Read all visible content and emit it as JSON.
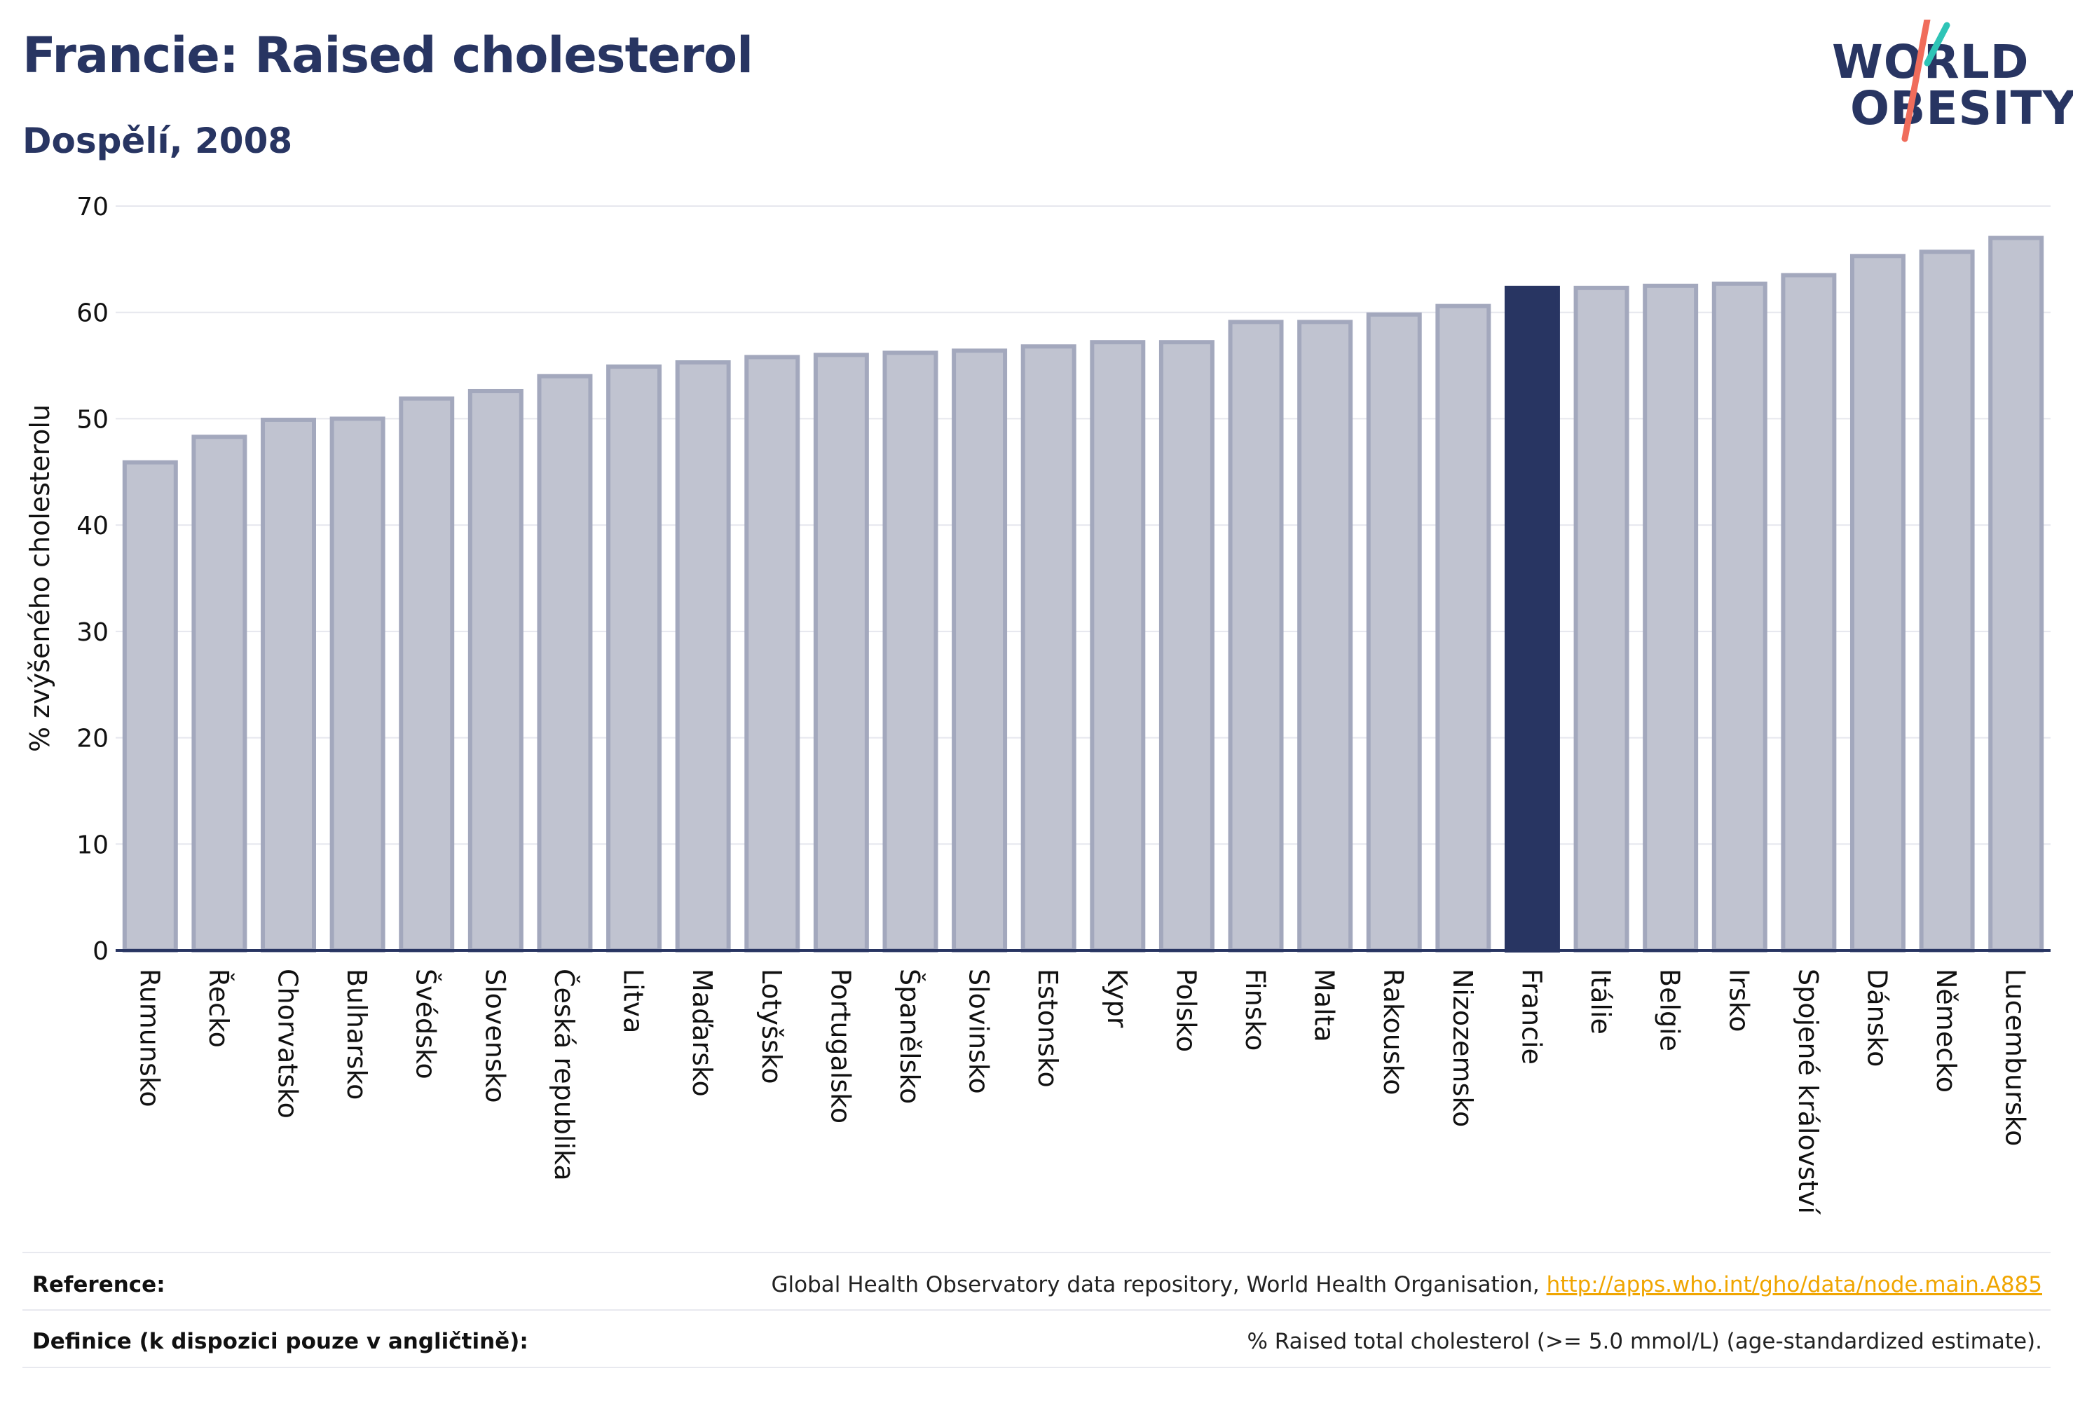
{
  "title": "Francie: Raised cholesterol",
  "subtitle": "Dospělí, 2008",
  "logo": {
    "line1": "WORLD",
    "line2": "OBESITY",
    "icon": "world-obesity-logo"
  },
  "colors": {
    "highlight": "#283562",
    "bar_fill": "#c0c3d0",
    "bar_stroke": "#a3a8bd",
    "link": "#f0a500",
    "axis": "#283562"
  },
  "chart_data": {
    "type": "bar",
    "title": "Francie: Raised cholesterol",
    "subtitle": "Dospělí, 2008",
    "xlabel": "",
    "ylabel": "% zvýšeného cholesterolu",
    "ylim": [
      0,
      70
    ],
    "yticks": [
      0,
      10,
      20,
      30,
      40,
      50,
      60,
      70
    ],
    "grid": true,
    "highlight": "Francie",
    "categories": [
      "Rumunsko",
      "Řecko",
      "Chorvatsko",
      "Bulharsko",
      "Švédsko",
      "Slovensko",
      "Česká republika",
      "Litva",
      "Maďarsko",
      "Lotyšsko",
      "Portugalsko",
      "Španělsko",
      "Slovinsko",
      "Estonsko",
      "Kypr",
      "Polsko",
      "Finsko",
      "Malta",
      "Rakousko",
      "Nizozemsko",
      "Francie",
      "Itálie",
      "Belgie",
      "Irsko",
      "Spojené království",
      "Dánsko",
      "Německo",
      "Lucembursko"
    ],
    "values": [
      45.9,
      48.3,
      49.9,
      50.0,
      51.9,
      52.6,
      54.0,
      54.9,
      55.3,
      55.8,
      56.0,
      56.2,
      56.4,
      56.8,
      57.2,
      57.2,
      59.1,
      59.1,
      59.8,
      60.6,
      62.3,
      62.3,
      62.5,
      62.7,
      63.5,
      65.3,
      65.7,
      67.0
    ]
  },
  "footer": {
    "reference_label": "Reference:",
    "reference_text": "Global Health Observatory data repository, World Health Organisation, ",
    "reference_link": "http://apps.who.int/gho/data/node.main.A885",
    "definition_label": "Definice (k dispozici pouze v angličtině):",
    "definition_text": "% Raised total cholesterol (>= 5.0 mmol/L) (age-standardized estimate)."
  }
}
